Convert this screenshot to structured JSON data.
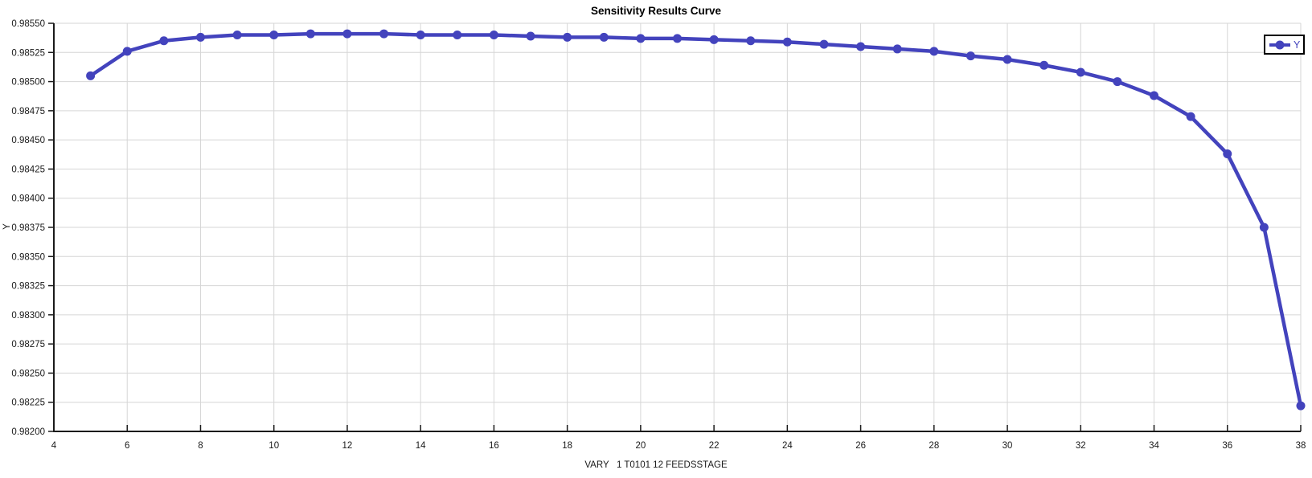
{
  "chart_data": {
    "type": "line",
    "title": "Sensitivity Results Curve",
    "xlabel": "VARY   1 T0101 12 FEEDSSTAGE",
    "ylabel": "Y",
    "xlim": [
      4,
      38
    ],
    "ylim": [
      0.982,
      0.9855
    ],
    "x_ticks": [
      4,
      6,
      8,
      10,
      12,
      14,
      16,
      18,
      20,
      22,
      24,
      26,
      28,
      30,
      32,
      34,
      36,
      38
    ],
    "y_ticks": [
      0.982,
      0.98225,
      0.9825,
      0.98275,
      0.983,
      0.98325,
      0.9835,
      0.98375,
      0.984,
      0.98425,
      0.9845,
      0.98475,
      0.985,
      0.98525,
      0.9855
    ],
    "y_tick_decimals": 5,
    "grid": true,
    "legend_position": "top-right",
    "colors": {
      "series": "#4343bd",
      "gridline": "#d6d6d6",
      "axis": "#1a1a1a",
      "legend_border": "#000000",
      "background": "#ffffff"
    },
    "series": [
      {
        "name": "Y",
        "x": [
          5,
          6,
          7,
          8,
          9,
          10,
          11,
          12,
          13,
          14,
          15,
          16,
          17,
          18,
          19,
          20,
          21,
          22,
          23,
          24,
          25,
          26,
          27,
          28,
          29,
          30,
          31,
          32,
          33,
          34,
          35,
          36,
          37,
          38
        ],
        "y": [
          0.98505,
          0.98526,
          0.98535,
          0.98538,
          0.9854,
          0.9854,
          0.98541,
          0.98541,
          0.98541,
          0.9854,
          0.9854,
          0.9854,
          0.98539,
          0.98538,
          0.98538,
          0.98537,
          0.98537,
          0.98536,
          0.98535,
          0.98534,
          0.98532,
          0.9853,
          0.98528,
          0.98526,
          0.98522,
          0.98519,
          0.98514,
          0.98508,
          0.985,
          0.98488,
          0.9847,
          0.98438,
          0.98375,
          0.98222
        ]
      }
    ]
  }
}
